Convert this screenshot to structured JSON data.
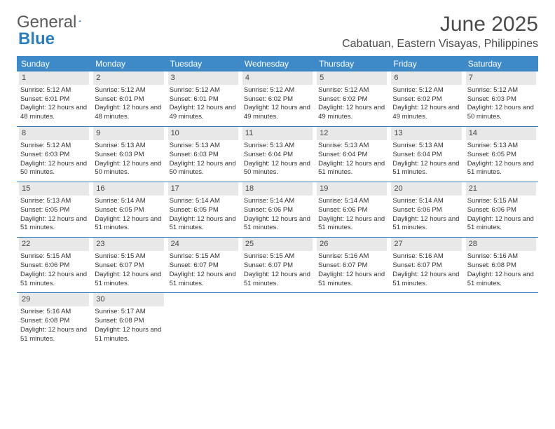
{
  "logo": {
    "text1": "General",
    "text2": "Blue"
  },
  "title": "June 2025",
  "location": "Cabatuan, Eastern Visayas, Philippines",
  "colors": {
    "header_bg": "#3e8ac9",
    "header_text": "#ffffff",
    "daynum_bg": "#e8e8e8",
    "row_border": "#2b7fbf",
    "logo_gray": "#5a5a5a",
    "logo_blue": "#2b7fbf",
    "title_color": "#4a4a4a"
  },
  "day_headers": [
    "Sunday",
    "Monday",
    "Tuesday",
    "Wednesday",
    "Thursday",
    "Friday",
    "Saturday"
  ],
  "weeks": [
    [
      {
        "n": "1",
        "sr": "5:12 AM",
        "ss": "6:01 PM",
        "dl": "12 hours and 48 minutes."
      },
      {
        "n": "2",
        "sr": "5:12 AM",
        "ss": "6:01 PM",
        "dl": "12 hours and 48 minutes."
      },
      {
        "n": "3",
        "sr": "5:12 AM",
        "ss": "6:01 PM",
        "dl": "12 hours and 49 minutes."
      },
      {
        "n": "4",
        "sr": "5:12 AM",
        "ss": "6:02 PM",
        "dl": "12 hours and 49 minutes."
      },
      {
        "n": "5",
        "sr": "5:12 AM",
        "ss": "6:02 PM",
        "dl": "12 hours and 49 minutes."
      },
      {
        "n": "6",
        "sr": "5:12 AM",
        "ss": "6:02 PM",
        "dl": "12 hours and 49 minutes."
      },
      {
        "n": "7",
        "sr": "5:12 AM",
        "ss": "6:03 PM",
        "dl": "12 hours and 50 minutes."
      }
    ],
    [
      {
        "n": "8",
        "sr": "5:12 AM",
        "ss": "6:03 PM",
        "dl": "12 hours and 50 minutes."
      },
      {
        "n": "9",
        "sr": "5:13 AM",
        "ss": "6:03 PM",
        "dl": "12 hours and 50 minutes."
      },
      {
        "n": "10",
        "sr": "5:13 AM",
        "ss": "6:03 PM",
        "dl": "12 hours and 50 minutes."
      },
      {
        "n": "11",
        "sr": "5:13 AM",
        "ss": "6:04 PM",
        "dl": "12 hours and 50 minutes."
      },
      {
        "n": "12",
        "sr": "5:13 AM",
        "ss": "6:04 PM",
        "dl": "12 hours and 51 minutes."
      },
      {
        "n": "13",
        "sr": "5:13 AM",
        "ss": "6:04 PM",
        "dl": "12 hours and 51 minutes."
      },
      {
        "n": "14",
        "sr": "5:13 AM",
        "ss": "6:05 PM",
        "dl": "12 hours and 51 minutes."
      }
    ],
    [
      {
        "n": "15",
        "sr": "5:13 AM",
        "ss": "6:05 PM",
        "dl": "12 hours and 51 minutes."
      },
      {
        "n": "16",
        "sr": "5:14 AM",
        "ss": "6:05 PM",
        "dl": "12 hours and 51 minutes."
      },
      {
        "n": "17",
        "sr": "5:14 AM",
        "ss": "6:05 PM",
        "dl": "12 hours and 51 minutes."
      },
      {
        "n": "18",
        "sr": "5:14 AM",
        "ss": "6:06 PM",
        "dl": "12 hours and 51 minutes."
      },
      {
        "n": "19",
        "sr": "5:14 AM",
        "ss": "6:06 PM",
        "dl": "12 hours and 51 minutes."
      },
      {
        "n": "20",
        "sr": "5:14 AM",
        "ss": "6:06 PM",
        "dl": "12 hours and 51 minutes."
      },
      {
        "n": "21",
        "sr": "5:15 AM",
        "ss": "6:06 PM",
        "dl": "12 hours and 51 minutes."
      }
    ],
    [
      {
        "n": "22",
        "sr": "5:15 AM",
        "ss": "6:06 PM",
        "dl": "12 hours and 51 minutes."
      },
      {
        "n": "23",
        "sr": "5:15 AM",
        "ss": "6:07 PM",
        "dl": "12 hours and 51 minutes."
      },
      {
        "n": "24",
        "sr": "5:15 AM",
        "ss": "6:07 PM",
        "dl": "12 hours and 51 minutes."
      },
      {
        "n": "25",
        "sr": "5:15 AM",
        "ss": "6:07 PM",
        "dl": "12 hours and 51 minutes."
      },
      {
        "n": "26",
        "sr": "5:16 AM",
        "ss": "6:07 PM",
        "dl": "12 hours and 51 minutes."
      },
      {
        "n": "27",
        "sr": "5:16 AM",
        "ss": "6:07 PM",
        "dl": "12 hours and 51 minutes."
      },
      {
        "n": "28",
        "sr": "5:16 AM",
        "ss": "6:08 PM",
        "dl": "12 hours and 51 minutes."
      }
    ],
    [
      {
        "n": "29",
        "sr": "5:16 AM",
        "ss": "6:08 PM",
        "dl": "12 hours and 51 minutes."
      },
      {
        "n": "30",
        "sr": "5:17 AM",
        "ss": "6:08 PM",
        "dl": "12 hours and 51 minutes."
      },
      {
        "empty": true
      },
      {
        "empty": true
      },
      {
        "empty": true
      },
      {
        "empty": true
      },
      {
        "empty": true
      }
    ]
  ],
  "labels": {
    "sunrise": "Sunrise: ",
    "sunset": "Sunset: ",
    "daylight": "Daylight: "
  }
}
